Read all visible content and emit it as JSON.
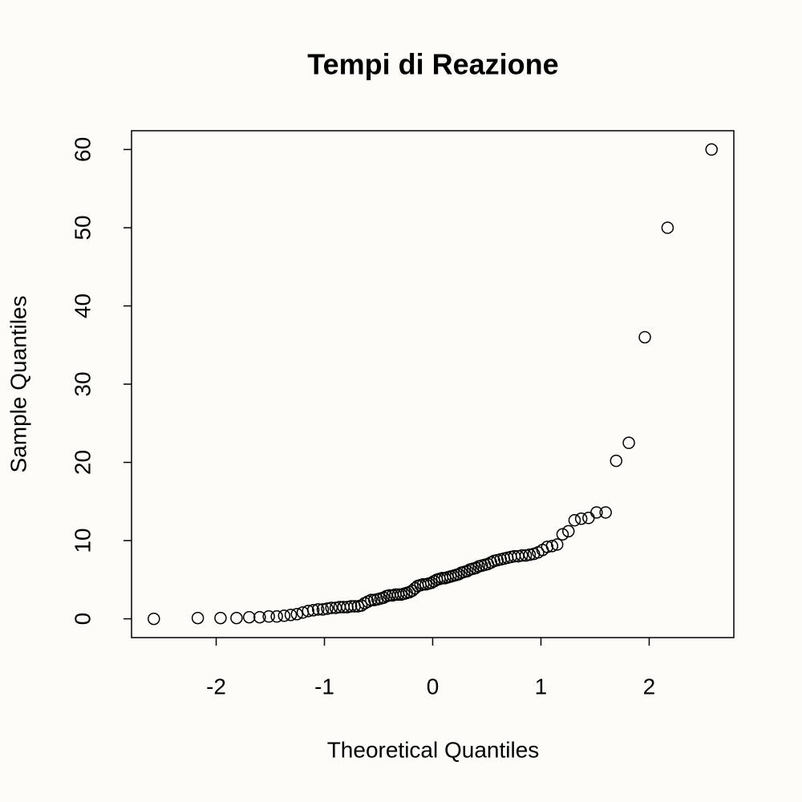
{
  "chart_data": {
    "type": "scatter",
    "title": "Tempi di Reazione",
    "x_label": "Theoretical Quantiles",
    "y_label": "Sample Quantiles",
    "x": [
      -2.576,
      -2.17,
      -1.96,
      -1.812,
      -1.695,
      -1.598,
      -1.514,
      -1.44,
      -1.372,
      -1.311,
      -1.254,
      -1.2,
      -1.15,
      -1.103,
      -1.058,
      -1.015,
      -0.974,
      -0.935,
      -0.896,
      -0.86,
      -0.824,
      -0.789,
      -0.755,
      -0.722,
      -0.69,
      -0.659,
      -0.628,
      -0.598,
      -0.568,
      -0.539,
      -0.51,
      -0.482,
      -0.454,
      -0.426,
      -0.399,
      -0.372,
      -0.345,
      -0.319,
      -0.292,
      -0.266,
      -0.24,
      -0.215,
      -0.189,
      -0.164,
      -0.138,
      -0.113,
      -0.088,
      -0.063,
      -0.038,
      -0.013,
      0.013,
      0.038,
      0.063,
      0.088,
      0.113,
      0.138,
      0.164,
      0.189,
      0.215,
      0.24,
      0.266,
      0.292,
      0.319,
      0.345,
      0.372,
      0.399,
      0.426,
      0.454,
      0.482,
      0.51,
      0.539,
      0.568,
      0.598,
      0.628,
      0.659,
      0.69,
      0.722,
      0.755,
      0.789,
      0.824,
      0.86,
      0.896,
      0.935,
      0.974,
      1.015,
      1.058,
      1.103,
      1.15,
      1.2,
      1.254,
      1.311,
      1.372,
      1.44,
      1.514,
      1.598,
      1.695,
      1.812,
      1.96,
      2.17,
      2.576
    ],
    "values": [
      0.0,
      0.1,
      0.1,
      0.1,
      0.2,
      0.2,
      0.3,
      0.3,
      0.4,
      0.5,
      0.6,
      0.8,
      1.0,
      1.1,
      1.2,
      1.2,
      1.3,
      1.4,
      1.4,
      1.5,
      1.5,
      1.5,
      1.6,
      1.6,
      1.6,
      1.7,
      2.0,
      2.2,
      2.4,
      2.4,
      2.5,
      2.6,
      2.7,
      2.9,
      3.0,
      3.0,
      3.1,
      3.1,
      3.1,
      3.2,
      3.3,
      3.4,
      3.6,
      3.9,
      4.2,
      4.3,
      4.4,
      4.4,
      4.5,
      4.6,
      4.8,
      5.0,
      5.1,
      5.2,
      5.2,
      5.3,
      5.4,
      5.5,
      5.6,
      5.7,
      5.9,
      6.0,
      6.1,
      6.3,
      6.4,
      6.5,
      6.7,
      6.8,
      6.9,
      7.0,
      7.2,
      7.4,
      7.5,
      7.6,
      7.7,
      7.8,
      7.9,
      8.0,
      8.0,
      8.1,
      8.1,
      8.2,
      8.3,
      8.5,
      8.8,
      9.2,
      9.3,
      9.5,
      10.8,
      11.2,
      12.6,
      12.8,
      12.9,
      13.6,
      13.6,
      20.2,
      22.5,
      36.0,
      50.0,
      60.0
    ],
    "color": "#000000",
    "xlim": [
      -2.782,
      2.782
    ],
    "ylim": [
      -2.4,
      62.4
    ],
    "xticks": [
      -2,
      -1,
      0,
      1,
      2
    ],
    "yticks": [
      0,
      10,
      20,
      30,
      40,
      50,
      60
    ],
    "grid": false
  }
}
